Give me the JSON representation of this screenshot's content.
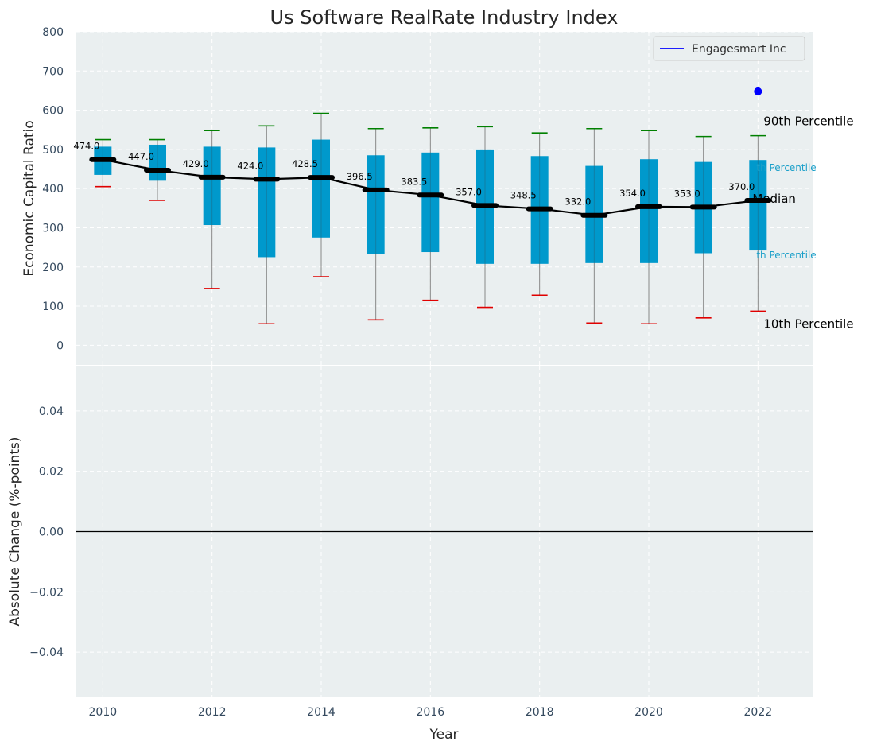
{
  "chart_data": [
    {
      "type": "box",
      "title": "Us Software RealRate Industry Index",
      "xlabel": "",
      "ylabel": "Economic Capital Ratio",
      "ylim": [
        -50,
        800
      ],
      "yticks": [
        0,
        100,
        200,
        300,
        400,
        500,
        600,
        700,
        800
      ],
      "xlim": [
        2009.5,
        2023.0
      ],
      "grid": true,
      "legend": {
        "placement": "top-right",
        "entries": [
          {
            "label": "Engagesmart Inc",
            "color": "#0000ff"
          }
        ]
      },
      "years": [
        2010,
        2011,
        2012,
        2013,
        2014,
        2015,
        2016,
        2017,
        2018,
        2019,
        2020,
        2021,
        2022
      ],
      "p10": [
        405,
        370,
        145,
        55,
        175,
        65,
        115,
        97,
        128,
        57,
        55,
        70,
        87
      ],
      "q1": [
        435,
        420,
        307,
        225,
        275,
        232,
        238,
        208,
        208,
        210,
        210,
        235,
        242
      ],
      "median": [
        474.0,
        447.0,
        429.0,
        424.0,
        428.5,
        396.5,
        383.5,
        357.0,
        348.5,
        332.0,
        354.0,
        353.0,
        370.0
      ],
      "median_labels": [
        "474.0",
        "447.0",
        "429.0",
        "424.0",
        "428.5",
        "396.5",
        "383.5",
        "357.0",
        "348.5",
        "332.0",
        "354.0",
        "353.0",
        "370.0"
      ],
      "q3": [
        507,
        512,
        507,
        505,
        525,
        485,
        492,
        498,
        483,
        458,
        475,
        468,
        473
      ],
      "p90": [
        525,
        525,
        548,
        560,
        592,
        553,
        555,
        558,
        542,
        553,
        548,
        533,
        535
      ],
      "company_points": [
        {
          "x": 2022,
          "y": 648,
          "color": "#0000ff"
        }
      ],
      "annotations": {
        "p90": "90th Percentile",
        "q3": "th Percentile",
        "median": "Median",
        "q1": "th Percentile",
        "p10": "10th Percentile"
      },
      "colors": {
        "box": "#0099cc",
        "median_line": "#000000",
        "whisker_top": "#008000",
        "whisker_bottom": "#e00000",
        "whisker_line": "#888888",
        "background": "#eaeff0",
        "grid": "#ffffff"
      }
    },
    {
      "type": "line",
      "xlabel": "Year",
      "ylabel": "Absolute Change (%-points)",
      "ylim": [
        -0.055,
        0.055
      ],
      "yticks": [
        -0.04,
        -0.02,
        0.0,
        0.02,
        0.04
      ],
      "ytick_labels": [
        "−0.04",
        "−0.02",
        "0.00",
        "0.02",
        "0.04"
      ],
      "xlim": [
        2009.5,
        2023.0
      ],
      "xticks": [
        2010,
        2012,
        2014,
        2016,
        2018,
        2020,
        2022
      ],
      "xtick_labels": [
        "2010",
        "2012",
        "2014",
        "2016",
        "2018",
        "2020",
        "2022"
      ],
      "reference_line": 0.0,
      "grid": true
    }
  ]
}
